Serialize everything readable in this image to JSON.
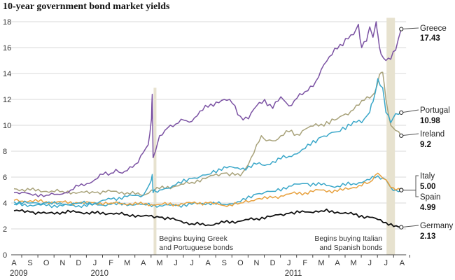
{
  "chart_data": {
    "type": "line",
    "title": "10-year government bond market yields",
    "xlabel": "",
    "ylabel": "",
    "ylim": [
      0,
      18.5
    ],
    "y_ticks": [
      0,
      2,
      4,
      6,
      8,
      10,
      12,
      14,
      16,
      18
    ],
    "grid": true,
    "x_ticks": [
      "A",
      "S",
      "O",
      "N",
      "D",
      "J",
      "F",
      "M",
      "A",
      "M",
      "J",
      "J",
      "A",
      "S",
      "O",
      "N",
      "D",
      "J",
      "F",
      "M",
      "A",
      "M",
      "J",
      "J",
      "A"
    ],
    "x_year_labels": [
      {
        "label": "2009",
        "month_index": 0
      },
      {
        "label": "2010",
        "month_index": 5
      },
      {
        "label": "2011",
        "month_index": 17
      }
    ],
    "x_month_labels_note": "Aug 2009 to Aug 2011",
    "events": [
      {
        "month": 8.72,
        "text": [
          "Begins buying Greek",
          "and Portuguese bonds"
        ]
      },
      {
        "month": 23.3,
        "text": [
          "Begins buying Italian",
          "and Spanish bonds"
        ]
      }
    ],
    "series": [
      {
        "name": "Greece",
        "color": "#7b52a3",
        "end_value": "17.43",
        "x": [
          0,
          1,
          2,
          3,
          3.5,
          4,
          4.5,
          5,
          5.5,
          6,
          6.3,
          6.7,
          7,
          7.5,
          8,
          8.3,
          8.5,
          8.55,
          8.6,
          8.75,
          9,
          9.5,
          10,
          10.5,
          11,
          11.5,
          12,
          12.5,
          13,
          13.5,
          14,
          14.5,
          15,
          15.5,
          16,
          16.5,
          17,
          17.5,
          18,
          18.5,
          19,
          19.5,
          20,
          20.5,
          21,
          21.3,
          21.5,
          21.8,
          22,
          22.2,
          22.4,
          22.5,
          22.7,
          23,
          23.3,
          23.6,
          23.95
        ],
        "y": [
          4.8,
          4.7,
          4.6,
          4.7,
          5.0,
          5.3,
          5.5,
          5.8,
          6.2,
          6.3,
          6.6,
          6.3,
          6.5,
          7.0,
          7.9,
          8.5,
          10.5,
          12.4,
          7.5,
          8.0,
          9.2,
          9.8,
          10.1,
          10.4,
          10.3,
          11.1,
          11.4,
          11.8,
          12.0,
          11.7,
          10.7,
          10.5,
          11.5,
          12.0,
          11.3,
          12.2,
          11.5,
          12.1,
          12.6,
          13.0,
          14.3,
          15.3,
          15.9,
          16.7,
          17.0,
          17.8,
          16.0,
          16.5,
          17.6,
          16.8,
          18.0,
          17.0,
          15.5,
          15.0,
          15.1,
          15.8,
          17.43
        ]
      },
      {
        "name": "Portugal",
        "color": "#3aa7c9",
        "end_value": "10.98",
        "x": [
          0,
          1,
          2,
          3,
          4,
          5,
          6,
          7,
          8,
          8.4,
          8.55,
          8.6,
          8.75,
          9,
          10,
          11,
          12,
          13,
          14,
          15,
          15.5,
          16,
          16.5,
          17,
          18,
          19,
          20,
          21,
          21.5,
          22,
          22.2,
          22.5,
          22.8,
          23,
          23.3,
          23.6,
          23.95
        ],
        "y": [
          4.1,
          4.0,
          4.0,
          3.9,
          4.0,
          4.0,
          4.3,
          4.5,
          4.6,
          5.5,
          6.2,
          4.8,
          4.9,
          5.0,
          5.4,
          5.9,
          6.2,
          6.8,
          6.6,
          7.0,
          6.9,
          7.2,
          7.4,
          7.6,
          8.2,
          9.1,
          9.5,
          10.3,
          10.2,
          11.0,
          11.8,
          13.6,
          12.9,
          11.0,
          10.2,
          10.9,
          10.98
        ]
      },
      {
        "name": "Ireland",
        "color": "#a8a27a",
        "end_value": "9.2",
        "x": [
          0,
          1,
          2,
          3,
          4,
          5,
          6,
          7,
          8,
          8.5,
          9,
          10,
          11,
          12,
          13,
          14,
          14.5,
          15,
          15.3,
          15.6,
          16,
          17,
          17.5,
          18,
          19,
          20,
          21,
          21.5,
          22,
          22.3,
          22.6,
          22.8,
          23,
          23.3,
          23.6,
          23.95
        ],
        "y": [
          5.1,
          5.0,
          4.9,
          4.9,
          4.8,
          4.8,
          4.9,
          4.8,
          4.6,
          5.0,
          5.1,
          5.3,
          5.6,
          6.0,
          6.3,
          6.1,
          7.0,
          8.5,
          9.2,
          8.8,
          8.8,
          9.5,
          9.3,
          9.7,
          10.1,
          10.5,
          11.2,
          11.9,
          12.1,
          12.5,
          13.9,
          14.1,
          12.0,
          10.0,
          9.6,
          9.2
        ]
      },
      {
        "name": "Italy",
        "color": "#e7a13f",
        "end_value": "5.00",
        "x": [
          0,
          2,
          4,
          6,
          8,
          9,
          10,
          11,
          12,
          13,
          14,
          15,
          16,
          17,
          18,
          19,
          20,
          21,
          22,
          22.5,
          23,
          23.3,
          23.6,
          23.95
        ],
        "y": [
          4.2,
          4.1,
          4.0,
          4.0,
          3.9,
          3.9,
          3.9,
          4.0,
          4.0,
          3.8,
          4.0,
          4.3,
          4.4,
          4.7,
          4.8,
          5.0,
          4.9,
          5.2,
          5.6,
          6.3,
          5.8,
          5.2,
          5.0,
          5.0
        ]
      },
      {
        "name": "Spain",
        "color": "#3aa7c9",
        "end_value": "4.99",
        "x": [
          0,
          2,
          4,
          6,
          8,
          9,
          10,
          11,
          12,
          13,
          14,
          15,
          16,
          17,
          18,
          19,
          20,
          21,
          22,
          22.5,
          23,
          23.3,
          23.6,
          23.95
        ],
        "y": [
          3.9,
          3.8,
          3.8,
          3.9,
          3.9,
          3.8,
          3.8,
          3.9,
          4.0,
          3.9,
          4.1,
          4.7,
          4.9,
          5.3,
          5.5,
          5.4,
          5.3,
          5.5,
          5.8,
          6.1,
          5.8,
          5.2,
          5.0,
          4.99
        ]
      },
      {
        "name": "Germany",
        "color": "#111111",
        "end_value": "2.13",
        "x": [
          0,
          1,
          2,
          3,
          4,
          5,
          6,
          7,
          8,
          9,
          10,
          11,
          12,
          13,
          14,
          15,
          16,
          17,
          18,
          19,
          20,
          21,
          22,
          23,
          23.95
        ],
        "y": [
          3.4,
          3.3,
          3.2,
          3.3,
          3.3,
          3.2,
          3.2,
          3.1,
          3.0,
          2.9,
          2.7,
          2.4,
          2.3,
          2.5,
          2.6,
          2.8,
          3.0,
          3.2,
          3.3,
          3.4,
          3.3,
          3.1,
          2.9,
          2.5,
          2.13
        ]
      }
    ]
  },
  "colors": {
    "greece": "#7b52a3",
    "portugal_spain": "#3aa7c9",
    "ireland": "#a8a27a",
    "italy": "#e7a13f",
    "germany": "#111111",
    "event_band": "#e7e2cf",
    "grid": "#d8d8d8"
  }
}
